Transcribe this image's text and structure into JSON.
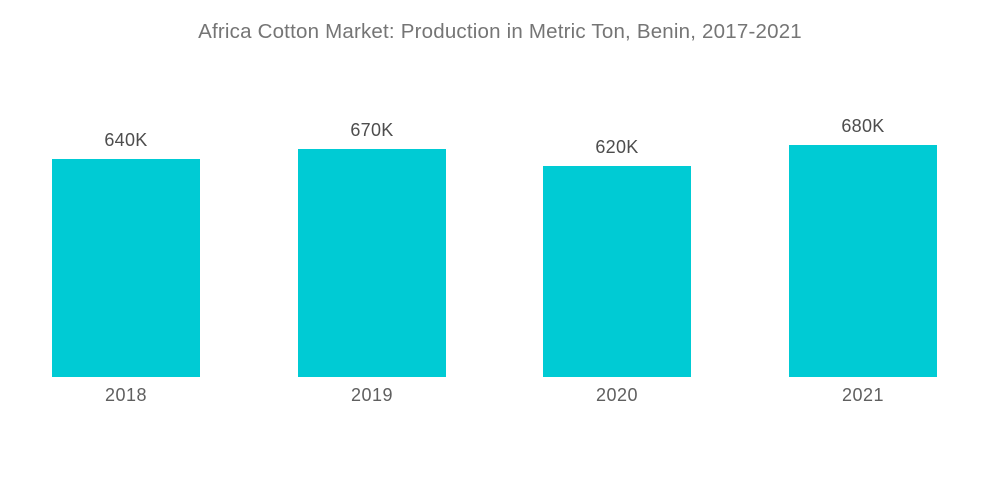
{
  "title": "Africa Cotton Market: Production in Metric Ton, Benin, 2017-2021",
  "colors": {
    "background": "#ffffff",
    "bar": "#00CBD4",
    "title_text": "#757575",
    "value_text": "#4d4d4d",
    "year_text": "#5f5f5f"
  },
  "chart_data": {
    "type": "bar",
    "title": "Africa Cotton Market: Production in Metric Ton, Benin, 2017-2021",
    "categories": [
      "2018",
      "2019",
      "2020",
      "2021"
    ],
    "values": [
      640000,
      670000,
      620000,
      680000
    ],
    "value_labels": [
      "640K",
      "670K",
      "620K",
      "680K"
    ],
    "series_unit": "Metric Ton",
    "xlabel": "",
    "ylabel": "",
    "ylim": [
      0,
      700000
    ],
    "grid": false,
    "axes_visible": false,
    "legend": false,
    "bar_color": "#00CBD4"
  }
}
